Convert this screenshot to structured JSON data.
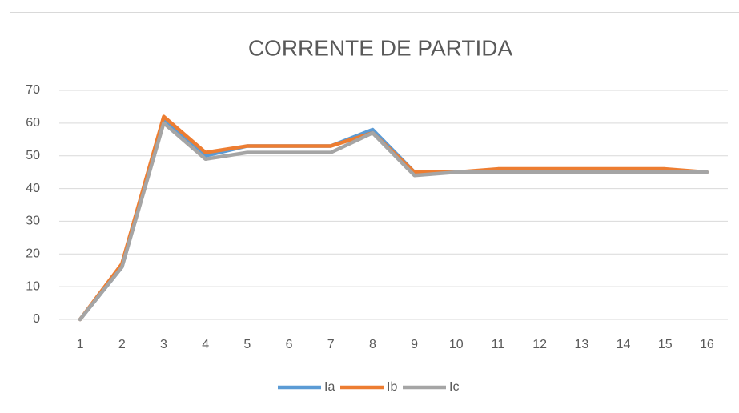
{
  "chart_data": {
    "type": "line",
    "title": "CORRENTE DE PARTIDA",
    "categories": [
      "1",
      "2",
      "3",
      "4",
      "5",
      "6",
      "7",
      "8",
      "9",
      "10",
      "11",
      "12",
      "13",
      "14",
      "15",
      "16"
    ],
    "series": [
      {
        "name": "Ia",
        "color": "#5b9bd5",
        "values": [
          0,
          16,
          61,
          50,
          53,
          53,
          53,
          58,
          45,
          45,
          45,
          45,
          45,
          45,
          45,
          45
        ]
      },
      {
        "name": "Ib",
        "color": "#ed7d31",
        "values": [
          0,
          17,
          62,
          51,
          53,
          53,
          53,
          57,
          45,
          45,
          46,
          46,
          46,
          46,
          46,
          45
        ]
      },
      {
        "name": "Ic",
        "color": "#a5a5a5",
        "values": [
          0,
          16,
          60,
          49,
          51,
          51,
          51,
          57,
          44,
          45,
          45,
          45,
          45,
          45,
          45,
          45
        ]
      }
    ],
    "ylim": [
      0,
      70
    ],
    "yticks": [
      0,
      10,
      20,
      30,
      40,
      50,
      60,
      70
    ],
    "grid": true,
    "legend": "bottom"
  }
}
